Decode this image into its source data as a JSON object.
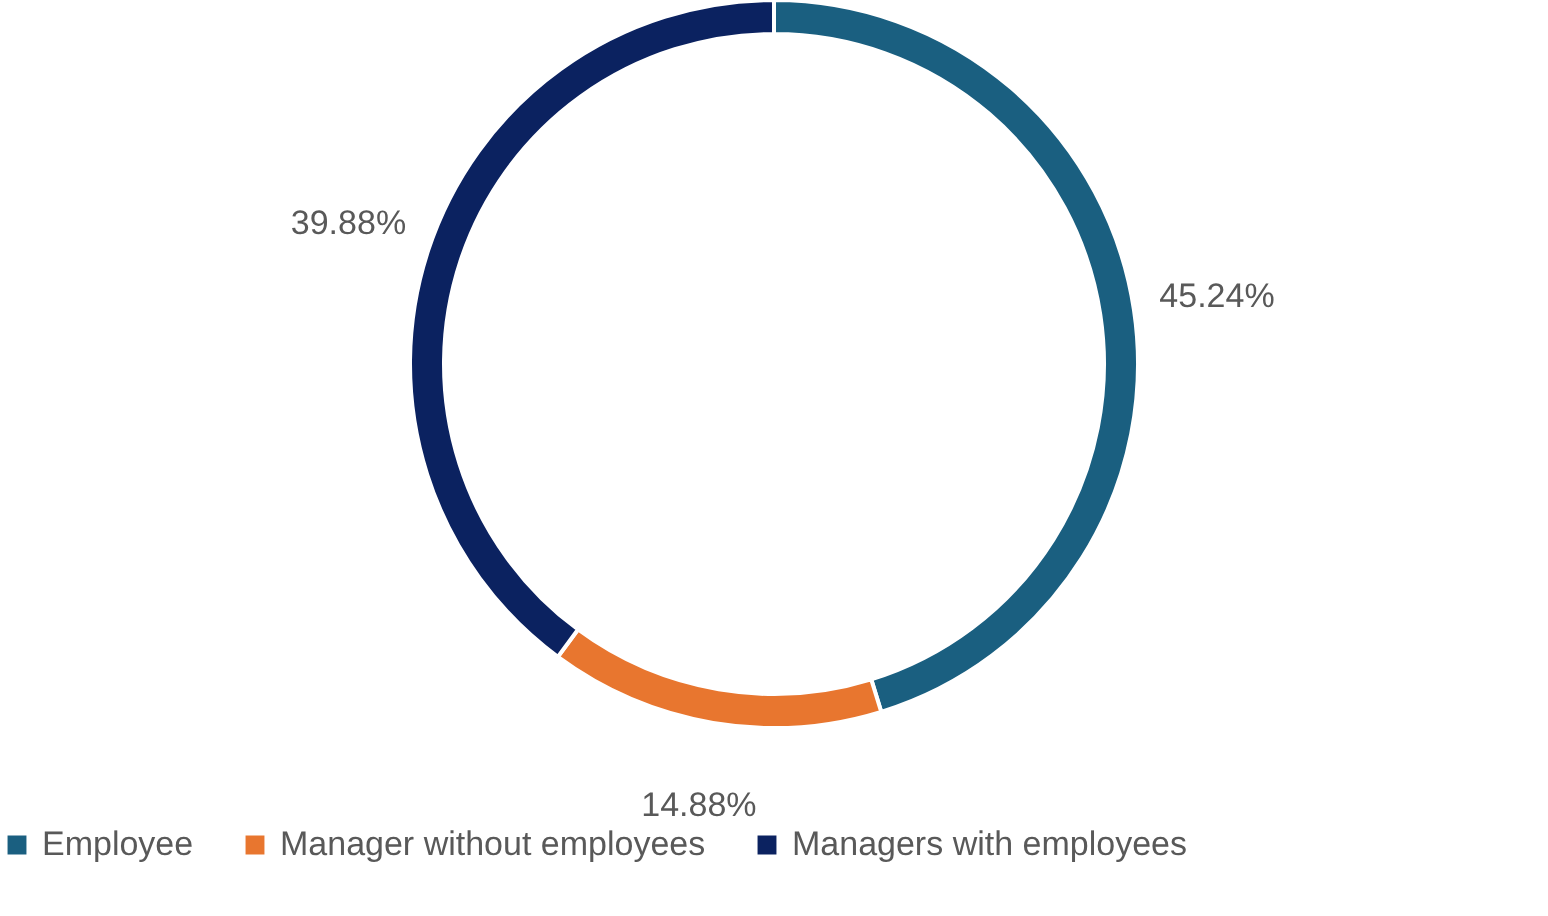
{
  "chart_data": {
    "type": "donut",
    "categories": [
      "Employee",
      "Manager without employees",
      "Managers with employees"
    ],
    "values": [
      45.24,
      14.88,
      39.88
    ],
    "colors": [
      "#1a5f80",
      "#e8762f",
      "#0b2260"
    ],
    "value_labels": [
      "45.24%",
      "14.88%",
      "39.88%"
    ],
    "legend": "bottom"
  }
}
